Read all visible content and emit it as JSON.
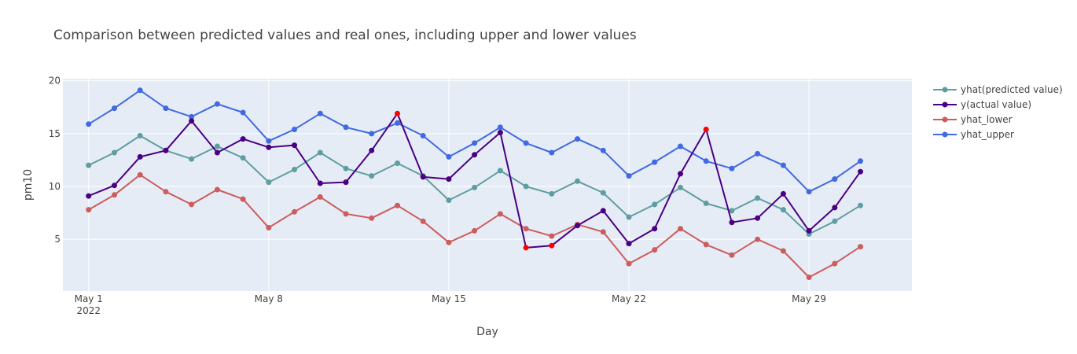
{
  "chart_data": {
    "type": "line",
    "title": "Comparison between predicted values and real ones, including upper and lower values",
    "xlabel": "Day",
    "ylabel": "pm10",
    "x": [
      "2022-05-01",
      "2022-05-02",
      "2022-05-03",
      "2022-05-04",
      "2022-05-05",
      "2022-05-06",
      "2022-05-07",
      "2022-05-08",
      "2022-05-09",
      "2022-05-10",
      "2022-05-11",
      "2022-05-12",
      "2022-05-13",
      "2022-05-14",
      "2022-05-15",
      "2022-05-16",
      "2022-05-17",
      "2022-05-18",
      "2022-05-19",
      "2022-05-20",
      "2022-05-21",
      "2022-05-22",
      "2022-05-23",
      "2022-05-24",
      "2022-05-25",
      "2022-05-26",
      "2022-05-27",
      "2022-05-28",
      "2022-05-29",
      "2022-05-30",
      "2022-05-31"
    ],
    "xlim": [
      "2022-04-30",
      "2022-06-02"
    ],
    "ylim": [
      0.1,
      20.2
    ],
    "x_ticks": [
      {
        "date": "2022-05-01",
        "label": "May 1",
        "sublabel": "2022"
      },
      {
        "date": "2022-05-08",
        "label": "May 8",
        "sublabel": ""
      },
      {
        "date": "2022-05-15",
        "label": "May 15",
        "sublabel": ""
      },
      {
        "date": "2022-05-22",
        "label": "May 22",
        "sublabel": ""
      },
      {
        "date": "2022-05-29",
        "label": "May 29",
        "sublabel": ""
      }
    ],
    "y_ticks": [
      5,
      10,
      15,
      20
    ],
    "grid": true,
    "legend_position": "right",
    "background": "#e5ecf6",
    "series": [
      {
        "name": "yhat(predicted value)",
        "color": "#5f9ea0",
        "values": [
          12.0,
          13.2,
          14.8,
          13.4,
          12.6,
          13.8,
          12.7,
          10.4,
          11.6,
          13.2,
          11.7,
          11.0,
          12.2,
          11.0,
          8.7,
          9.9,
          11.5,
          10.0,
          9.3,
          10.5,
          9.4,
          7.1,
          8.3,
          9.9,
          8.4,
          7.7,
          8.9,
          7.8,
          5.5,
          6.7,
          8.2
        ]
      },
      {
        "name": "y(actual value)",
        "color": "#4b0082",
        "outlier_color": "#ff0000",
        "values": [
          9.1,
          10.1,
          12.8,
          13.4,
          16.2,
          13.2,
          14.5,
          13.7,
          13.9,
          10.3,
          10.4,
          13.4,
          16.9,
          10.9,
          10.7,
          13.0,
          15.1,
          4.2,
          4.4,
          6.3,
          7.7,
          4.6,
          6.0,
          11.2,
          15.4,
          6.6,
          7.0,
          9.3,
          5.8,
          8.0,
          11.4
        ],
        "outliers": [
          12,
          17,
          18,
          24
        ]
      },
      {
        "name": "yhat_lower",
        "color": "#cd5c5c",
        "values": [
          7.8,
          9.2,
          11.1,
          9.5,
          8.3,
          9.7,
          8.8,
          6.1,
          7.6,
          9.0,
          7.4,
          7.0,
          8.2,
          6.7,
          4.7,
          5.8,
          7.4,
          6.0,
          5.3,
          6.4,
          5.7,
          2.7,
          4.0,
          6.0,
          4.5,
          3.5,
          5.0,
          3.9,
          1.4,
          2.7,
          4.3
        ]
      },
      {
        "name": "yhat_upper",
        "color": "#4169e1",
        "values": [
          15.9,
          17.4,
          19.1,
          17.4,
          16.6,
          17.8,
          17.0,
          14.3,
          15.4,
          16.9,
          15.6,
          15.0,
          16.0,
          14.8,
          12.8,
          14.1,
          15.6,
          14.1,
          13.2,
          14.5,
          13.4,
          11.0,
          12.3,
          13.8,
          12.4,
          11.7,
          13.1,
          12.0,
          9.5,
          10.7,
          12.4
        ]
      }
    ]
  }
}
